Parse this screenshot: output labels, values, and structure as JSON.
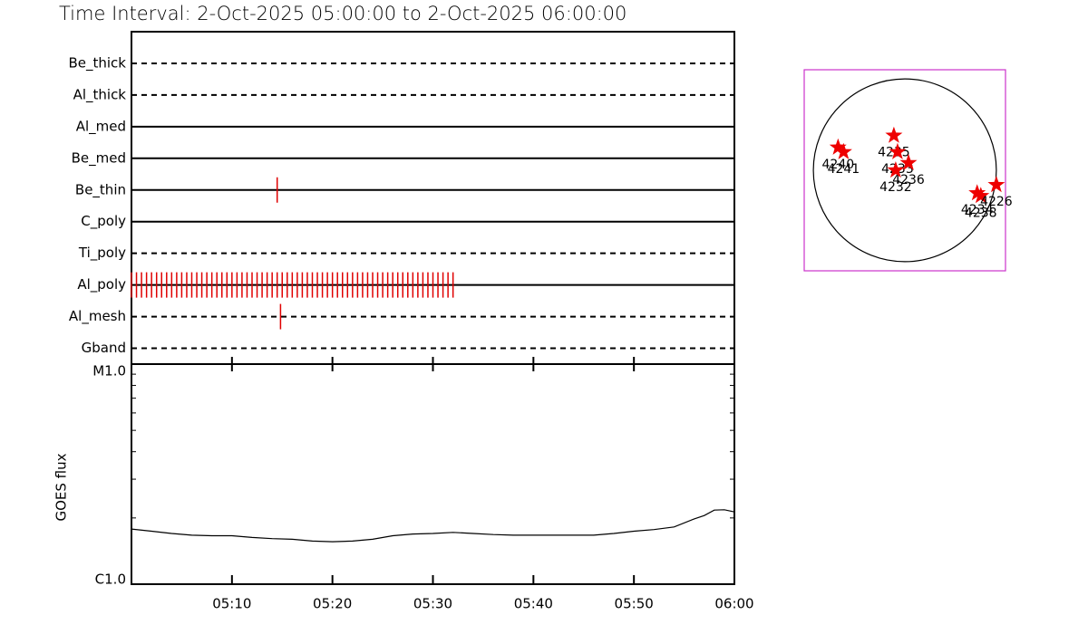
{
  "title": "Time Interval:  2-Oct-2025 05:00:00 to  2-Oct-2025 06:00:00",
  "chart_data": [
    {
      "type": "timeline",
      "categories": [
        "Be_thick",
        "Al_thick",
        "Al_med",
        "Be_med",
        "Be_thin",
        "C_poly",
        "Ti_poly",
        "Al_poly",
        "Al_mesh",
        "Gband"
      ],
      "line_styles": [
        "dashed",
        "dashed",
        "solid",
        "solid",
        "solid",
        "solid",
        "dashed",
        "solid",
        "dashed",
        "dashed"
      ],
      "events": [
        [],
        [],
        [],
        [],
        [
          "05:14:30"
        ],
        [],
        [],
        [
          "05:00:00",
          "05:00:30",
          "05:01:00",
          "05:01:30",
          "05:02:00",
          "05:02:30",
          "05:03:00",
          "05:03:30",
          "05:04:00",
          "05:04:30",
          "05:05:00",
          "05:05:30",
          "05:06:00",
          "05:06:30",
          "05:07:00",
          "05:07:30",
          "05:08:00",
          "05:08:30",
          "05:09:00",
          "05:09:30",
          "05:10:00",
          "05:10:30",
          "05:11:00",
          "05:11:30",
          "05:12:00",
          "05:12:30",
          "05:13:00",
          "05:13:30",
          "05:14:00",
          "05:14:30",
          "05:15:00",
          "05:15:30",
          "05:16:00",
          "05:16:30",
          "05:17:00",
          "05:17:30",
          "05:18:00",
          "05:18:30",
          "05:19:00",
          "05:19:30",
          "05:20:00",
          "05:20:30",
          "05:21:00",
          "05:21:30",
          "05:22:00",
          "05:22:30",
          "05:23:00",
          "05:23:30",
          "05:24:00",
          "05:24:30",
          "05:25:00",
          "05:25:30",
          "05:26:00",
          "05:26:30",
          "05:27:00",
          "05:27:30",
          "05:28:00",
          "05:28:30",
          "05:29:00",
          "05:29:30",
          "05:30:00",
          "05:30:30",
          "05:31:00",
          "05:31:30",
          "05:32:00"
        ],
        [
          "05:14:50"
        ],
        []
      ],
      "event_color": "#e00000",
      "xlim": [
        "05:00",
        "06:00"
      ]
    },
    {
      "type": "line",
      "ylabel": "GOES flux",
      "log_y": true,
      "color": "#000000",
      "x": [
        "05:00",
        "05:02",
        "05:04",
        "05:06",
        "05:08",
        "05:10",
        "05:12",
        "05:14",
        "05:16",
        "05:18",
        "05:20",
        "05:22",
        "05:24",
        "05:26",
        "05:28",
        "05:30",
        "05:32",
        "05:34",
        "05:36",
        "05:38",
        "05:40",
        "05:42",
        "05:44",
        "05:46",
        "05:48",
        "05:50",
        "05:52",
        "05:54",
        "05:56",
        "05:57",
        "05:58",
        "05:59",
        "06:00"
      ],
      "values": [
        1.78e-06,
        1.74e-06,
        1.7e-06,
        1.67e-06,
        1.66e-06,
        1.66e-06,
        1.63e-06,
        1.61e-06,
        1.6e-06,
        1.57e-06,
        1.56e-06,
        1.57e-06,
        1.6e-06,
        1.66e-06,
        1.69e-06,
        1.7e-06,
        1.72e-06,
        1.7e-06,
        1.68e-06,
        1.67e-06,
        1.67e-06,
        1.67e-06,
        1.67e-06,
        1.67e-06,
        1.7e-06,
        1.74e-06,
        1.77e-06,
        1.82e-06,
        1.98e-06,
        2.05e-06,
        2.17e-06,
        2.18e-06,
        2.13e-06
      ],
      "xlim": [
        "05:00",
        "06:00"
      ],
      "xticks": [
        "05:10",
        "05:20",
        "05:30",
        "05:40",
        "05:50",
        "06:00"
      ],
      "ylim": [
        1e-06,
        1e-05
      ],
      "yticks": [
        {
          "value": 1e-05,
          "label": "M1.0"
        },
        {
          "value": 1e-06,
          "label": "C1.0"
        }
      ],
      "minor_yticks": [
        2e-06,
        3e-06,
        4e-06,
        5e-06,
        6e-06,
        7e-06,
        8e-06,
        9e-06
      ]
    },
    {
      "type": "map",
      "labels": [
        "4240",
        "4241",
        "4235",
        "4233",
        "4236",
        "4232",
        "4234",
        "4238",
        "4226"
      ],
      "x": [
        -0.73,
        -0.67,
        -0.12,
        -0.08,
        0.04,
        -0.1,
        0.79,
        0.83,
        1.0
      ],
      "y": [
        0.25,
        0.2,
        0.38,
        0.2,
        0.08,
        0.0,
        -0.25,
        -0.28,
        -0.16
      ],
      "xlim": [
        -1.1,
        1.1
      ],
      "ylim": [
        -1.1,
        1.1
      ],
      "color": "#ee0000",
      "frame_color": "#cc33cc"
    }
  ]
}
